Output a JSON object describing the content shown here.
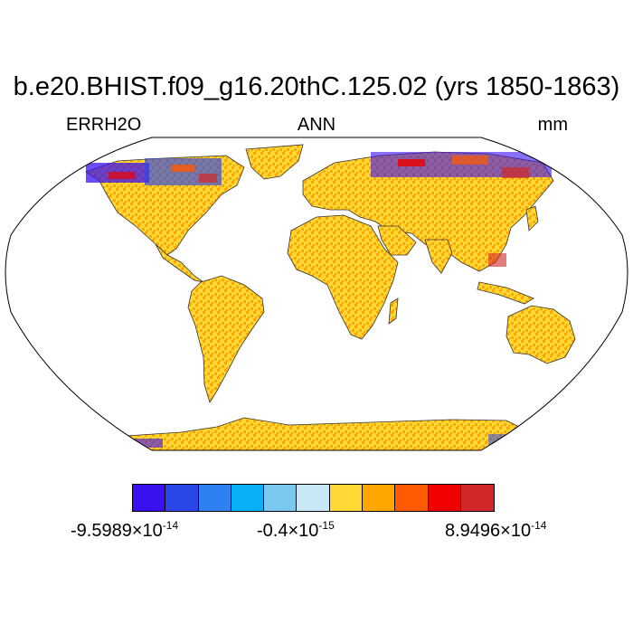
{
  "header": {
    "title": "b.e20.BHIST.f09_g16.20thC.125.02 (yrs 1850-1863)",
    "variable": "ERRH2O",
    "period": "ANN",
    "units": "mm"
  },
  "colorbar": {
    "colors": [
      "#3a10f0",
      "#2a46e6",
      "#2f80f0",
      "#08b0f8",
      "#78c8f0",
      "#c8e8f8",
      "#ffd835",
      "#ffa600",
      "#ff5a00",
      "#f00000",
      "#d02828"
    ],
    "label_min_base": "-9.5989",
    "label_min_exp": "-14",
    "label_mid_base": "-0.4",
    "label_mid_exp": "-15",
    "label_max_base": "8.9496",
    "label_max_exp": "-14",
    "times_sign": "×10"
  },
  "map": {
    "projection": "robinson",
    "dominant_color": "#ffd835",
    "secondary_color": "#ffa600",
    "ocean_color": "#ffffff"
  }
}
